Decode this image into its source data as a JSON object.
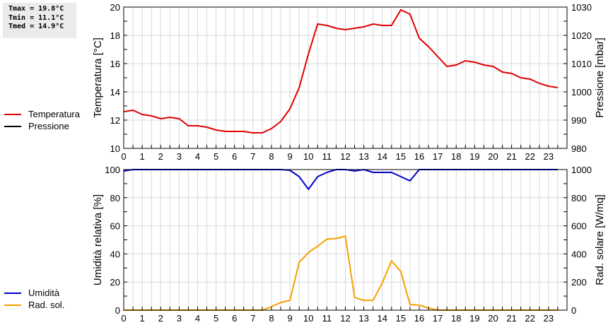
{
  "stats": {
    "tmax": "Tmax = 19.8°C",
    "tmin": "Tmin = 11.1°C",
    "tmed": "Tmed = 14.9°C"
  },
  "legend_top": [
    {
      "label": "Temperatura",
      "color": "#e00000"
    },
    {
      "label": "Pressione",
      "color": "#000000"
    }
  ],
  "legend_bottom": [
    {
      "label": "Umidità",
      "color": "#0000d0"
    },
    {
      "label": "Rad. sol.",
      "color": "#f5a000"
    }
  ],
  "chart_data": [
    {
      "type": "line",
      "title": "",
      "xlabel": "",
      "ylabel": "Temperatura [°C]",
      "ylabel_right": "Pressione [mbar]",
      "xlim": [
        0,
        24
      ],
      "ylim": [
        10,
        20
      ],
      "ylim_right": [
        980,
        1030
      ],
      "x_ticks": [
        0,
        1,
        2,
        3,
        4,
        5,
        6,
        7,
        8,
        9,
        10,
        11,
        12,
        13,
        14,
        15,
        16,
        17,
        18,
        19,
        20,
        21,
        22,
        23
      ],
      "y_ticks": [
        10,
        12,
        14,
        16,
        18,
        20
      ],
      "y_ticks_right": [
        980,
        990,
        1000,
        1010,
        1020,
        1030
      ],
      "grid": true,
      "legend_position": "left",
      "x": [
        0,
        0.5,
        1,
        1.5,
        2,
        2.5,
        3,
        3.5,
        4,
        4.5,
        5,
        5.5,
        6,
        6.5,
        7,
        7.5,
        8,
        8.5,
        9,
        9.5,
        10,
        10.5,
        11,
        11.5,
        12,
        12.5,
        13,
        13.5,
        14,
        14.5,
        15,
        15.5,
        16,
        16.5,
        17,
        17.5,
        18,
        18.5,
        19,
        19.5,
        20,
        20.5,
        21,
        21.5,
        22,
        22.5,
        23,
        23.5
      ],
      "series": [
        {
          "name": "Temperatura",
          "color": "#e00000",
          "axis": "left",
          "values": [
            12.6,
            12.7,
            12.4,
            12.3,
            12.1,
            12.2,
            12.1,
            11.6,
            11.6,
            11.5,
            11.3,
            11.2,
            11.2,
            11.2,
            11.1,
            11.1,
            11.4,
            11.9,
            12.8,
            14.3,
            16.7,
            18.8,
            18.7,
            18.5,
            18.4,
            18.5,
            18.6,
            18.8,
            18.7,
            18.7,
            19.8,
            19.5,
            17.8,
            17.2,
            16.5,
            15.8,
            15.9,
            16.2,
            16.1,
            15.9,
            15.8,
            15.4,
            15.3,
            15.0,
            14.9,
            14.6,
            14.4,
            14.3
          ]
        },
        {
          "name": "Pressione",
          "color": "#000000",
          "axis": "right",
          "values": []
        }
      ]
    },
    {
      "type": "line",
      "title": "",
      "xlabel": "",
      "ylabel": "Umidità relativa [%]",
      "ylabel_right": "Rad. solare [W/mq]",
      "xlim": [
        0,
        24
      ],
      "ylim": [
        0,
        100
      ],
      "ylim_right": [
        0,
        1000
      ],
      "x_ticks": [
        0,
        1,
        2,
        3,
        4,
        5,
        6,
        7,
        8,
        9,
        10,
        11,
        12,
        13,
        14,
        15,
        16,
        17,
        18,
        19,
        20,
        21,
        22,
        23
      ],
      "y_ticks": [
        0,
        20,
        40,
        60,
        80,
        100
      ],
      "y_ticks_right": [
        0,
        200,
        400,
        600,
        800,
        1000
      ],
      "grid": true,
      "legend_position": "left",
      "x": [
        0,
        0.5,
        1,
        1.5,
        2,
        2.5,
        3,
        3.5,
        4,
        4.5,
        5,
        5.5,
        6,
        6.5,
        7,
        7.5,
        8,
        8.5,
        9,
        9.5,
        10,
        10.5,
        11,
        11.5,
        12,
        12.5,
        13,
        13.5,
        14,
        14.5,
        15,
        15.5,
        16,
        16.5,
        17,
        17.5,
        18,
        18.5,
        19,
        19.5,
        20,
        20.5,
        21,
        21.5,
        22,
        22.5,
        23,
        23.5
      ],
      "series": [
        {
          "name": "Umidità",
          "color": "#0000d0",
          "axis": "left",
          "values": [
            99,
            100,
            100,
            100,
            100,
            100,
            100,
            100,
            100,
            100,
            100,
            100,
            100,
            100,
            100,
            100,
            100,
            100,
            99.5,
            95,
            86,
            95,
            98,
            100,
            100,
            99,
            100,
            98,
            98,
            98,
            95,
            92,
            100,
            100,
            100,
            100,
            100,
            100,
            100,
            100,
            100,
            100,
            100,
            100,
            100,
            100,
            100,
            100
          ]
        },
        {
          "name": "Rad. sol.",
          "color": "#f5a000",
          "axis": "right",
          "values": [
            0,
            0,
            0,
            0,
            0,
            0,
            0,
            0,
            0,
            0,
            0,
            0,
            0,
            0,
            0,
            0,
            25,
            55,
            70,
            340,
            410,
            455,
            505,
            510,
            525,
            90,
            70,
            70,
            195,
            350,
            275,
            40,
            35,
            15,
            0,
            0,
            0,
            0,
            0,
            0,
            0,
            0,
            0,
            0,
            0,
            0,
            0,
            0
          ]
        }
      ]
    }
  ]
}
